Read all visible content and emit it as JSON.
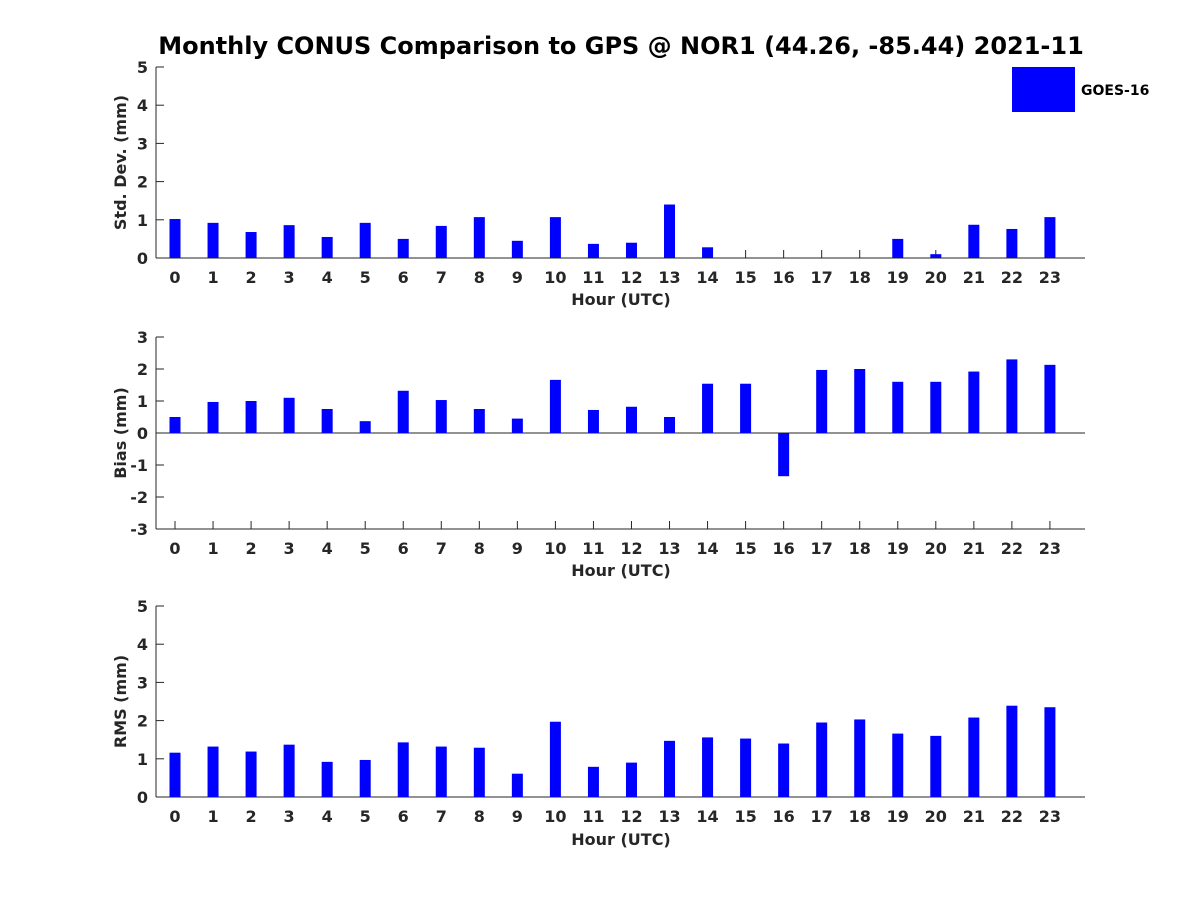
{
  "title": "Monthly CONUS Comparison to GPS @ NOR1 (44.26, -85.44) 2021-11",
  "colors": {
    "bar": "#0000ff",
    "axis": "#262626",
    "background": "#ffffff"
  },
  "legend": {
    "label": "GOES-16",
    "placement": "top-right"
  },
  "chart_data": [
    {
      "type": "bar",
      "xlabel": "Hour (UTC)",
      "ylabel": "Std. Dev. (mm)",
      "ylim": [
        0,
        5
      ],
      "yticks": [
        "0",
        "1",
        "2",
        "3",
        "4",
        "5"
      ],
      "categories": [
        "0",
        "1",
        "2",
        "3",
        "4",
        "5",
        "6",
        "7",
        "8",
        "9",
        "10",
        "11",
        "12",
        "13",
        "14",
        "15",
        "16",
        "17",
        "18",
        "19",
        "20",
        "21",
        "22",
        "23"
      ],
      "series": [
        {
          "name": "GOES-16",
          "values": [
            1.02,
            0.92,
            0.68,
            0.86,
            0.55,
            0.92,
            0.5,
            0.84,
            1.07,
            0.45,
            1.07,
            0.37,
            0.4,
            1.4,
            0.28,
            null,
            null,
            null,
            null,
            0.5,
            0.1,
            0.87,
            0.76,
            1.07
          ]
        }
      ],
      "grid": false
    },
    {
      "type": "bar",
      "xlabel": "Hour (UTC)",
      "ylabel": "Bias (mm)",
      "ylim": [
        -3,
        3
      ],
      "yticks": [
        "-3",
        "-2",
        "-1",
        "0",
        "1",
        "2",
        "3"
      ],
      "categories": [
        "0",
        "1",
        "2",
        "3",
        "4",
        "5",
        "6",
        "7",
        "8",
        "9",
        "10",
        "11",
        "12",
        "13",
        "14",
        "15",
        "16",
        "17",
        "18",
        "19",
        "20",
        "21",
        "22",
        "23"
      ],
      "series": [
        {
          "name": "GOES-16",
          "values": [
            0.5,
            0.97,
            1.0,
            1.1,
            0.75,
            0.37,
            1.32,
            1.03,
            0.75,
            0.45,
            1.66,
            0.72,
            0.82,
            0.5,
            1.54,
            1.54,
            -1.35,
            1.97,
            2.0,
            1.6,
            1.6,
            1.92,
            2.3,
            2.13
          ]
        }
      ],
      "grid": false
    },
    {
      "type": "bar",
      "xlabel": "Hour (UTC)",
      "ylabel": "RMS (mm)",
      "ylim": [
        0,
        5
      ],
      "yticks": [
        "0",
        "1",
        "2",
        "3",
        "4",
        "5"
      ],
      "categories": [
        "0",
        "1",
        "2",
        "3",
        "4",
        "5",
        "6",
        "7",
        "8",
        "9",
        "10",
        "11",
        "12",
        "13",
        "14",
        "15",
        "16",
        "17",
        "18",
        "19",
        "20",
        "21",
        "22",
        "23"
      ],
      "series": [
        {
          "name": "GOES-16",
          "values": [
            1.16,
            1.32,
            1.19,
            1.37,
            0.92,
            0.97,
            1.43,
            1.32,
            1.29,
            0.61,
            1.97,
            0.79,
            0.9,
            1.47,
            1.56,
            1.53,
            1.4,
            1.95,
            2.03,
            1.66,
            1.6,
            2.08,
            2.39,
            2.35
          ]
        }
      ],
      "grid": false
    }
  ]
}
